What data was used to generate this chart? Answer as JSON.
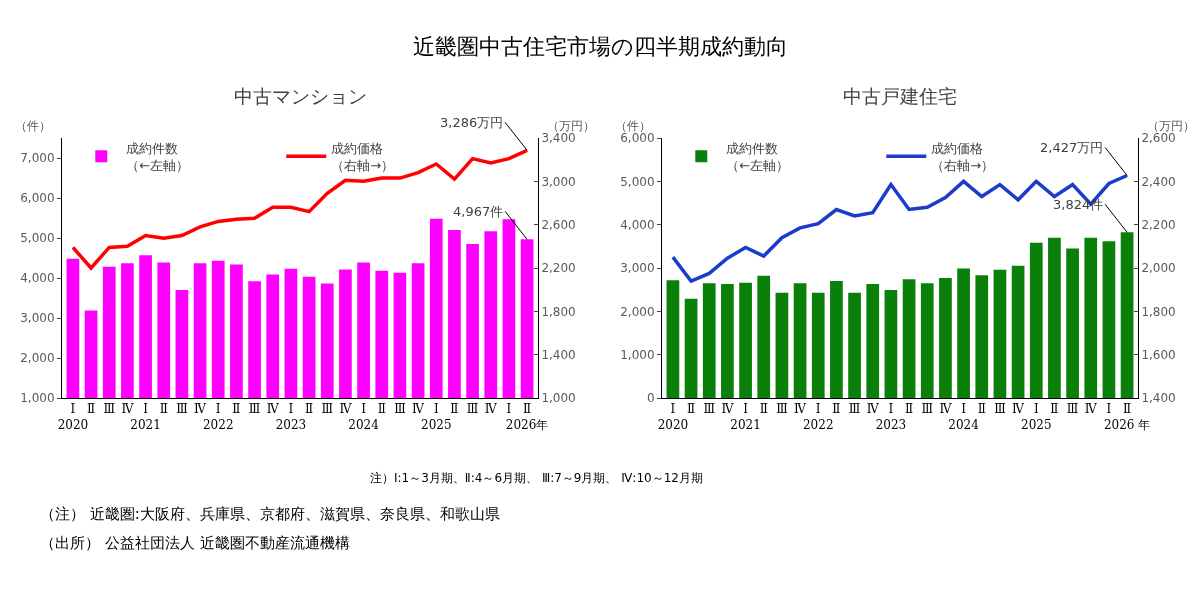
{
  "chart_data": [
    {
      "type": "bar",
      "title": "近畿圏中古住宅市場の四半期成約動向",
      "subtitle": "中古マンション",
      "ylabel": "（件）",
      "y2label": "（万円）",
      "categories": [
        "Ⅰ\n2020",
        "Ⅱ",
        "Ⅲ",
        "Ⅳ",
        "Ⅰ\n2021",
        "Ⅱ",
        "Ⅲ",
        "Ⅳ",
        "Ⅰ\n2022",
        "Ⅱ",
        "Ⅲ",
        "Ⅳ",
        "Ⅰ\n2023",
        "Ⅱ",
        "Ⅲ",
        "Ⅳ",
        "Ⅰ\n2024",
        "Ⅱ",
        "Ⅲ",
        "Ⅳ",
        "Ⅰ\n2025",
        "Ⅱ",
        "Ⅲ",
        "Ⅳ",
        "Ⅰ",
        "Ⅱ\n2026年"
      ],
      "series": [
        {
          "name": "成約件数（←左軸）",
          "color": "#ff00ff",
          "values": [
            4480,
            3190,
            4280,
            4370,
            4570,
            4390,
            3700,
            4370,
            4430,
            4340,
            3920,
            4090,
            4230,
            4030,
            3860,
            4210,
            4390,
            4180,
            4130,
            4370,
            5480,
            5200,
            4850,
            5170,
            5470,
            4967
          ],
          "value_labels": [
            null,
            null,
            null,
            null,
            null,
            null,
            null,
            null,
            null,
            null,
            null,
            null,
            null,
            null,
            null,
            null,
            null,
            null,
            null,
            null,
            null,
            null,
            null,
            null,
            null,
            "4,967件"
          ]
        },
        {
          "name": "成約価格（右軸→）",
          "type": "line",
          "axis": "y2",
          "color": "#ff0000",
          "values": [
            2390,
            2200,
            2390,
            2400,
            2500,
            2475,
            2500,
            2580,
            2630,
            2650,
            2660,
            2760,
            2760,
            2720,
            2890,
            3010,
            3000,
            3030,
            3030,
            3080,
            3160,
            3020,
            3210,
            3170,
            3210,
            3286
          ],
          "value_labels": [
            null,
            null,
            null,
            null,
            null,
            null,
            null,
            null,
            null,
            null,
            null,
            null,
            null,
            null,
            null,
            null,
            null,
            null,
            null,
            null,
            null,
            null,
            null,
            null,
            null,
            "3,286万円"
          ]
        }
      ],
      "ylim": [
        1000,
        7500
      ],
      "yticks": [
        {
          "value": 1000,
          "label": "1,000"
        },
        {
          "value": 2000,
          "label": "2,000"
        },
        {
          "value": 3000,
          "label": "3,000"
        },
        {
          "value": 4000,
          "label": "4,000"
        },
        {
          "value": 5000,
          "label": "5,000"
        },
        {
          "value": 6000,
          "label": "6,000"
        },
        {
          "value": 7000,
          "label": "7,000"
        }
      ],
      "y2lim": [
        1000,
        3400
      ],
      "y2ticks": [
        {
          "value": 1000,
          "label": "1,000"
        },
        {
          "value": 1400,
          "label": "1,400"
        },
        {
          "value": 1800,
          "label": "1,800"
        },
        {
          "value": 2200,
          "label": "2,200"
        },
        {
          "value": 2600,
          "label": "2,600"
        },
        {
          "value": 3000,
          "label": "3,000"
        },
        {
          "value": 3400,
          "label": "3,400"
        }
      ],
      "grid": false,
      "legend": "top left"
    },
    {
      "type": "bar",
      "subtitle": "中古戸建住宅",
      "ylabel": "（件）",
      "y2label": "（万円）",
      "categories": [
        "Ⅰ\n2020",
        "Ⅱ",
        "Ⅲ",
        "Ⅳ",
        "Ⅰ\n2021",
        "Ⅱ",
        "Ⅲ",
        "Ⅳ",
        "Ⅰ\n2022",
        "Ⅱ",
        "Ⅲ",
        "Ⅳ",
        "Ⅰ\n2023",
        "Ⅱ",
        "Ⅲ",
        "Ⅳ",
        "Ⅰ\n2024",
        "Ⅱ",
        "Ⅲ",
        "Ⅳ",
        "Ⅰ\n2025",
        "Ⅱ",
        "Ⅲ",
        "Ⅳ",
        "Ⅰ",
        "Ⅱ\n2026 年"
      ],
      "series": [
        {
          "name": "成約件数（←左軸）",
          "color": "#0a800a",
          "values": [
            2720,
            2290,
            2650,
            2630,
            2660,
            2820,
            2430,
            2650,
            2430,
            2700,
            2430,
            2630,
            2490,
            2740,
            2650,
            2770,
            2990,
            2830,
            2960,
            3050,
            3580,
            3700,
            3450,
            3700,
            3620,
            3824
          ],
          "value_labels": [
            null,
            null,
            null,
            null,
            null,
            null,
            null,
            null,
            null,
            null,
            null,
            null,
            null,
            null,
            null,
            null,
            null,
            null,
            null,
            null,
            null,
            null,
            null,
            null,
            null,
            "3,824件"
          ]
        },
        {
          "name": "成約価格（右軸→）",
          "type": "line",
          "axis": "y2",
          "color": "#1a3cc8",
          "values": [
            2050,
            1940,
            1975,
            2045,
            2095,
            2055,
            2140,
            2185,
            2205,
            2270,
            2240,
            2255,
            2385,
            2270,
            2280,
            2325,
            2400,
            2330,
            2385,
            2315,
            2400,
            2330,
            2385,
            2295,
            2390,
            2427
          ],
          "value_labels": [
            null,
            null,
            null,
            null,
            null,
            null,
            null,
            null,
            null,
            null,
            null,
            null,
            null,
            null,
            null,
            null,
            null,
            null,
            null,
            null,
            null,
            null,
            null,
            null,
            null,
            "2,427万円"
          ]
        }
      ],
      "ylim": [
        0,
        6000
      ],
      "yticks": [
        {
          "value": 0,
          "label": "0"
        },
        {
          "value": 1000,
          "label": "1,000"
        },
        {
          "value": 2000,
          "label": "2,000"
        },
        {
          "value": 3000,
          "label": "3,000"
        },
        {
          "value": 4000,
          "label": "4,000"
        },
        {
          "value": 5000,
          "label": "5,000"
        },
        {
          "value": 6000,
          "label": "6,000"
        }
      ],
      "y2lim": [
        1400,
        2600
      ],
      "y2ticks": [
        {
          "value": 1400,
          "label": "1,400"
        },
        {
          "value": 1600,
          "label": "1,600"
        },
        {
          "value": 1800,
          "label": "1,800"
        },
        {
          "value": 2000,
          "label": "2,000"
        },
        {
          "value": 2200,
          "label": "2,200"
        },
        {
          "value": 2400,
          "label": "2,400"
        },
        {
          "value": 2600,
          "label": "2,600"
        }
      ],
      "grid": false,
      "legend": "top left",
      "annotations": [
        "注）Ⅰ:1～3月期、Ⅱ:4～6月期、 Ⅲ:7～9月期、 Ⅳ:10～12月期",
        "（注） 近畿圏:大阪府、兵庫県、京都府、滋賀県、奈良県、和歌山県",
        "（出所） 公益社団法人 近畿圏不動産流通機構"
      ]
    }
  ]
}
